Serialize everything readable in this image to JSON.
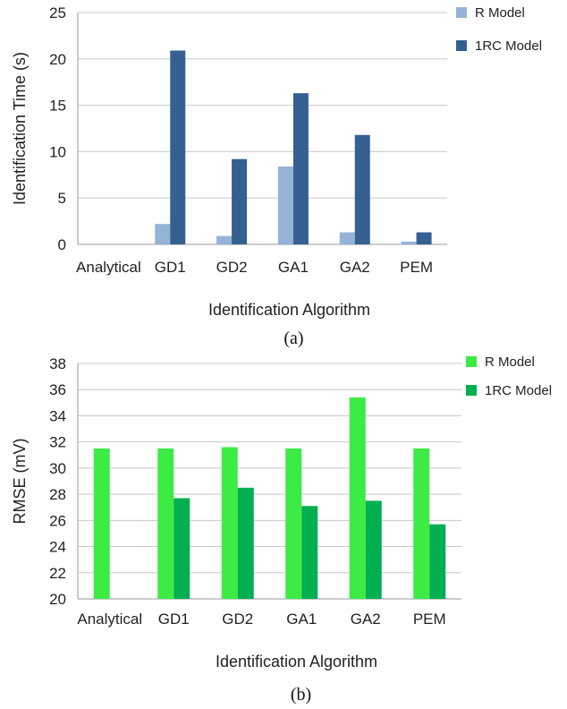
{
  "chart_data": [
    {
      "type": "bar",
      "caption": "(a)",
      "categories": [
        "Analytical",
        "GD1",
        "GD2",
        "GA1",
        "GA2",
        "PEM"
      ],
      "series": [
        {
          "name": "R Model",
          "color": "#95b3d7",
          "values": [
            0,
            2.2,
            0.9,
            8.4,
            1.3,
            0.3
          ]
        },
        {
          "name": "1RC Model",
          "color": "#366092",
          "values": [
            0,
            20.9,
            9.2,
            16.3,
            11.8,
            1.3
          ]
        }
      ],
      "xlabel": "Identification Algorithm",
      "ylabel": "Identification Time (s)",
      "ylim": [
        0,
        25
      ],
      "yticks": [
        "0",
        "5",
        "10",
        "15",
        "20",
        "25"
      ],
      "grid": true,
      "legend": "top-right"
    },
    {
      "type": "bar",
      "caption": "(b)",
      "categories": [
        "Analytical",
        "GD1",
        "GD2",
        "GA1",
        "GA2",
        "PEM"
      ],
      "series": [
        {
          "name": "R Model",
          "color": "#3deb45",
          "values": [
            31.5,
            31.5,
            31.6,
            31.5,
            35.4,
            31.5
          ]
        },
        {
          "name": "1RC Model",
          "color": "#00b050",
          "values": [
            null,
            27.7,
            28.5,
            27.1,
            27.5,
            25.7
          ]
        }
      ],
      "xlabel": "Identification Algorithm",
      "ylabel": "RMSE (mV)",
      "ylim": [
        20,
        38
      ],
      "yticks": [
        "20",
        "22",
        "24",
        "26",
        "28",
        "30",
        "32",
        "34",
        "36",
        "38"
      ],
      "grid": true,
      "legend": "top-right"
    }
  ]
}
